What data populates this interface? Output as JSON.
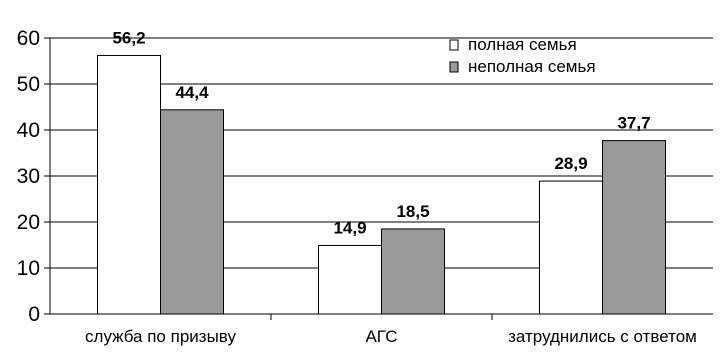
{
  "chart_data": {
    "type": "bar",
    "title": "",
    "xlabel": "",
    "ylabel": "",
    "categories": [
      "служба по призыву",
      "АГС",
      "затруднились с ответом"
    ],
    "series": [
      {
        "name": "полная семья",
        "values": [
          56.2,
          14.9,
          28.9
        ],
        "labels": [
          "56,2",
          "14,9",
          "28,9"
        ]
      },
      {
        "name": "неполная семья",
        "values": [
          44.4,
          18.5,
          37.7
        ],
        "labels": [
          "44,4",
          "18,5",
          "37,7"
        ]
      }
    ],
    "ylim": [
      0,
      60
    ],
    "yticks": [
      0,
      10,
      20,
      30,
      40,
      50,
      60
    ],
    "grid": true,
    "legend": "top-right",
    "colors": {
      "series": [
        "#ffffff",
        "#999999"
      ],
      "stroke": "#000000",
      "grid": "#000000"
    }
  }
}
